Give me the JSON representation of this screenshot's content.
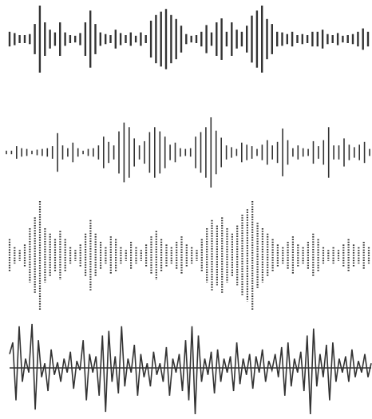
{
  "colors": {
    "background": "#ffffff",
    "wave": "#333333"
  },
  "waveforms": [
    {
      "name": "waveform-solid-bars",
      "style": "bars",
      "amplitudes": [
        0.22,
        0.18,
        0.12,
        0.12,
        0.15,
        0.45,
        1.0,
        0.5,
        0.28,
        0.2,
        0.5,
        0.2,
        0.12,
        0.1,
        0.18,
        0.5,
        0.85,
        0.45,
        0.2,
        0.15,
        0.12,
        0.28,
        0.18,
        0.12,
        0.2,
        0.1,
        0.2,
        0.12,
        0.55,
        0.72,
        0.82,
        0.9,
        0.72,
        0.6,
        0.4,
        0.15,
        0.1,
        0.12,
        0.22,
        0.42,
        0.2,
        0.5,
        0.62,
        0.22,
        0.5,
        0.28,
        0.22,
        0.4,
        0.7,
        0.85,
        1.0,
        0.6,
        0.45,
        0.22,
        0.2,
        0.15,
        0.22,
        0.12,
        0.15,
        0.12,
        0.22,
        0.22,
        0.28,
        0.15,
        0.12,
        0.18,
        0.1,
        0.12,
        0.15,
        0.22,
        0.32,
        0.22
      ]
    },
    {
      "name": "waveform-thin-bars",
      "style": "bars",
      "amplitudes": [
        0.05,
        0.05,
        0.18,
        0.12,
        0.1,
        0.05,
        0.08,
        0.1,
        0.12,
        0.18,
        0.55,
        0.2,
        0.12,
        0.28,
        0.12,
        0.05,
        0.1,
        0.12,
        0.2,
        0.45,
        0.3,
        0.2,
        0.6,
        0.85,
        0.72,
        0.4,
        0.2,
        0.32,
        0.58,
        0.72,
        0.6,
        0.45,
        0.22,
        0.28,
        0.12,
        0.1,
        0.12,
        0.45,
        0.58,
        0.72,
        1.0,
        0.62,
        0.42,
        0.2,
        0.15,
        0.1,
        0.28,
        0.22,
        0.18,
        0.1,
        0.22,
        0.35,
        0.2,
        0.3,
        0.68,
        0.35,
        0.12,
        0.2,
        0.12,
        0.1,
        0.32,
        0.18,
        0.35,
        0.72,
        0.2,
        0.2,
        0.4,
        0.22,
        0.15,
        0.22,
        0.3,
        0.1
      ]
    },
    {
      "name": "waveform-dotted-bars",
      "style": "dotted",
      "amplitudes": [
        0.3,
        0.15,
        0.1,
        0.2,
        0.5,
        0.7,
        1.0,
        0.5,
        0.4,
        0.3,
        0.45,
        0.3,
        0.15,
        0.1,
        0.2,
        0.4,
        0.65,
        0.4,
        0.25,
        0.15,
        0.35,
        0.3,
        0.15,
        0.1,
        0.25,
        0.15,
        0.1,
        0.2,
        0.35,
        0.45,
        0.3,
        0.2,
        0.15,
        0.25,
        0.35,
        0.2,
        0.15,
        0.1,
        0.3,
        0.5,
        0.65,
        0.55,
        0.7,
        0.5,
        0.4,
        0.55,
        0.75,
        0.85,
        1.0,
        0.6,
        0.5,
        0.4,
        0.3,
        0.2,
        0.15,
        0.25,
        0.35,
        0.2,
        0.15,
        0.25,
        0.4,
        0.3,
        0.15,
        0.1,
        0.15,
        0.1,
        0.2,
        0.3,
        0.2,
        0.15,
        0.25,
        0.15
      ]
    },
    {
      "name": "waveform-line",
      "style": "line",
      "amplitudes": [
        0.3,
        0.55,
        -0.7,
        0.9,
        -0.3,
        0.2,
        -0.1,
        0.95,
        -0.9,
        0.6,
        -0.2,
        0.1,
        -0.5,
        0.4,
        -0.15,
        0.12,
        -0.3,
        0.2,
        -0.1,
        0.35,
        -0.45,
        0.15,
        -0.05,
        0.6,
        -0.7,
        0.3,
        -0.1,
        0.25,
        -0.6,
        0.7,
        -0.95,
        0.8,
        -0.3,
        0.25,
        -0.55,
        0.9,
        -0.4,
        0.2,
        -0.1,
        0.5,
        -0.6,
        0.3,
        -0.2,
        0.1,
        -0.4,
        0.35,
        -0.15,
        0.1,
        -0.3,
        0.45,
        -0.6,
        0.2,
        -0.1,
        0.3,
        -0.5,
        0.6,
        -0.7,
        0.9,
        -1.0,
        0.7,
        -0.3,
        0.2,
        -0.15,
        0.35,
        -0.55,
        0.4,
        -0.3,
        0.2,
        -0.1,
        0.25,
        -0.5,
        0.55,
        -0.35,
        0.2,
        -0.15,
        0.3,
        -0.45,
        0.25,
        -0.1,
        0.4,
        -0.3,
        0.15,
        -0.05,
        0.3,
        -0.2,
        0.45,
        -0.6,
        0.55,
        -0.4,
        0.2,
        -0.1,
        0.35,
        -0.5,
        0.7,
        -1.0,
        0.85,
        -0.4,
        0.3,
        -0.2,
        0.5,
        -0.7,
        0.55,
        -0.3,
        0.2,
        -0.1,
        0.25,
        -0.3,
        0.4,
        -0.2,
        0.15,
        -0.1,
        0.3,
        -0.2,
        0.1
      ]
    }
  ]
}
